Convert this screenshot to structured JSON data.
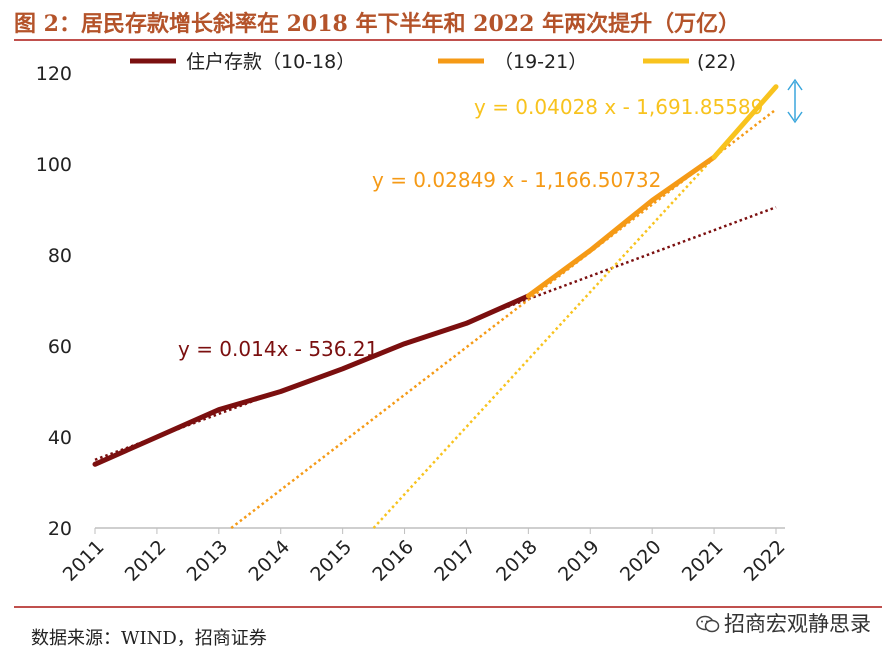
{
  "title": "图 2：居民存款增长斜率在 2018 年下半年和 2022 年两次提升（万亿）",
  "source": "数据来源：WIND，招商证券",
  "watermark": "招商宏观静思录",
  "colors": {
    "dark_red": "#7b0f0f",
    "orange": "#f59a16",
    "yellow": "#f8c31e",
    "rule": "#c0504d",
    "arrow": "#3aa6dc"
  },
  "chart_data": {
    "type": "line",
    "title": "居民存款增长斜率在 2018 年下半年和 2022 年两次提升（万亿）",
    "xlabel": "",
    "ylabel": "",
    "ylim": [
      20,
      120
    ],
    "yticks": [
      20,
      40,
      60,
      80,
      100,
      120
    ],
    "categories": [
      "2011",
      "2012",
      "2013",
      "2014",
      "2015",
      "2016",
      "2017",
      "2018",
      "2019",
      "2020",
      "2021",
      "2022"
    ],
    "legend_position": "top",
    "grid": false,
    "series": [
      {
        "name": "住户存款（10-18）",
        "color": "#7b0f0f",
        "x": [
          2011,
          2012,
          2013,
          2014,
          2015,
          2016,
          2017,
          2018
        ],
        "y": [
          34,
          40,
          46,
          50,
          55,
          60.5,
          65,
          71
        ]
      },
      {
        "name": "（19-21）",
        "color": "#f59a16",
        "x": [
          2018,
          2019,
          2020,
          2021
        ],
        "y": [
          71,
          81,
          92,
          101.5
        ]
      },
      {
        "name": "(22)",
        "color": "#f8c31e",
        "x": [
          2021,
          2022
        ],
        "y": [
          101.5,
          117
        ]
      }
    ],
    "trendlines": [
      {
        "label": "y = 0.014x - 536.21",
        "color": "#7b0f0f",
        "x": [
          2011,
          2022
        ],
        "y": [
          35,
          90.5
        ]
      },
      {
        "label": "y = 0.02849 x - 1,166.50732",
        "color": "#f59a16",
        "x": [
          2013.2,
          2022
        ],
        "y": [
          20,
          112
        ]
      },
      {
        "label": "y = 0.04028 x - 1,691.85589",
        "color": "#f8c31e",
        "x": [
          2015.5,
          2021
        ],
        "y": [
          20,
          101.5
        ]
      }
    ]
  }
}
